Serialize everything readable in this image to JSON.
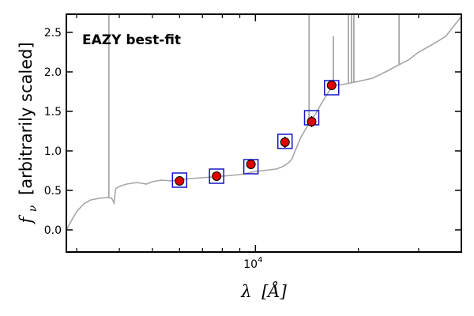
{
  "chart_data": {
    "type": "scatter",
    "annotation": "EAZY best-fit",
    "annotation_color": "#ff0000",
    "xlabel_symbol": "λ",
    "xlabel_unit": "[Å]",
    "ylabel_symbol": "f",
    "ylabel_sub": "ν",
    "ylabel_text": "[arbitrarily scaled]",
    "x_scale": "log",
    "xlim": [
      2800,
      40000
    ],
    "ylim": [
      -0.28,
      2.73
    ],
    "yticks": [
      0.0,
      0.5,
      1.0,
      1.5,
      2.0,
      2.5
    ],
    "ytick_labels": [
      "0.0",
      "0.5",
      "1.0",
      "1.5",
      "2.0",
      "2.5"
    ],
    "xtick_major": [
      10000
    ],
    "xtick_major_label_base": "10",
    "xtick_major_label_exp": "4",
    "xtick_minor": [
      3000,
      4000,
      5000,
      6000,
      7000,
      8000,
      9000,
      20000,
      30000,
      40000
    ],
    "grid": false,
    "colors": {
      "template": "#a6a6a6",
      "observed_fill": "#e00000",
      "observed_edge": "#000000",
      "model_box": "#1515c8"
    },
    "template_spectrum": {
      "x": [
        2800,
        2900,
        3000,
        3150,
        3300,
        3500,
        3700,
        3800,
        3860,
        3900,
        4000,
        4200,
        4500,
        4800,
        5000,
        5300,
        5700,
        6100,
        6500,
        7000,
        7500,
        8000,
        8500,
        9000,
        9500,
        10000,
        10500,
        11000,
        11500,
        12000,
        12500,
        12800,
        13000,
        13300,
        13600,
        14000,
        14500,
        15000,
        15500,
        16000,
        16500,
        17000,
        18000,
        19000,
        20000,
        22000,
        24000,
        26000,
        28000,
        30000,
        33000,
        36000,
        38000,
        40000
      ],
      "y": [
        0.0,
        0.12,
        0.23,
        0.33,
        0.38,
        0.4,
        0.41,
        0.4,
        0.34,
        0.52,
        0.55,
        0.58,
        0.6,
        0.58,
        0.61,
        0.63,
        0.62,
        0.64,
        0.65,
        0.66,
        0.67,
        0.68,
        0.69,
        0.7,
        0.72,
        0.74,
        0.75,
        0.76,
        0.77,
        0.8,
        0.85,
        0.9,
        0.98,
        1.08,
        1.18,
        1.27,
        1.38,
        1.47,
        1.58,
        1.68,
        1.77,
        1.83,
        1.84,
        1.86,
        1.88,
        1.92,
        2.0,
        2.08,
        2.15,
        2.25,
        2.35,
        2.45,
        2.58,
        2.7
      ],
      "emission_lines": [
        {
          "x": 3727,
          "y": 2.73
        },
        {
          "x": 14350,
          "y": 2.73
        },
        {
          "x": 16900,
          "y": 2.45
        },
        {
          "x": 18700,
          "y": 2.73
        },
        {
          "x": 19100,
          "y": 2.73
        },
        {
          "x": 19400,
          "y": 2.73
        },
        {
          "x": 26300,
          "y": 2.73
        }
      ]
    },
    "observed": {
      "x": [
        6000,
        7700,
        9700,
        12200,
        14600,
        16700
      ],
      "y": [
        0.62,
        0.68,
        0.83,
        1.11,
        1.37,
        1.83
      ],
      "yerr": [
        0.02,
        0.02,
        0.03,
        0.07,
        0.07,
        0.05
      ]
    },
    "model": {
      "x": [
        6000,
        7700,
        9700,
        12200,
        14600,
        16700
      ],
      "y": [
        0.63,
        0.68,
        0.8,
        1.12,
        1.42,
        1.8
      ]
    }
  }
}
